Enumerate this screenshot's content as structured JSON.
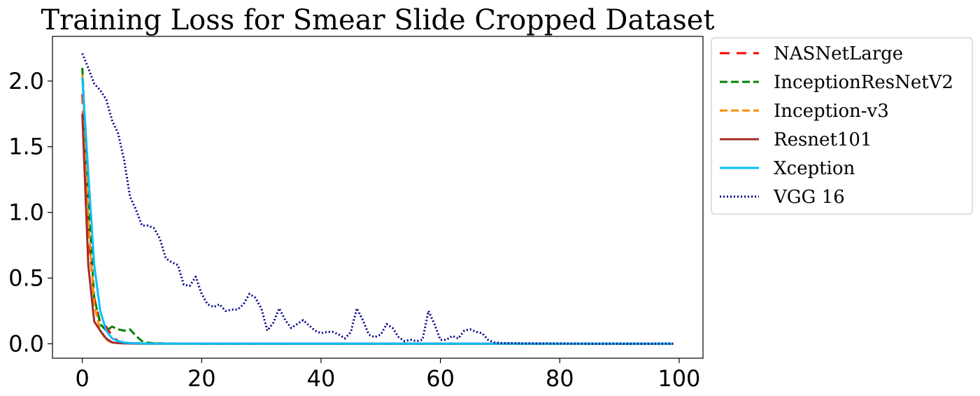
{
  "chart_data": {
    "type": "line",
    "title": "Training Loss for Smear Slide Cropped Dataset",
    "xlabel": "",
    "ylabel": "",
    "xlim": [
      -5,
      104
    ],
    "ylim": [
      -0.11,
      2.34
    ],
    "x_ticks": [
      0,
      20,
      40,
      60,
      80,
      100
    ],
    "y_ticks": [
      0.0,
      0.5,
      1.0,
      1.5,
      2.0
    ],
    "x_tick_labels": [
      "0",
      "20",
      "40",
      "60",
      "80",
      "100"
    ],
    "y_tick_labels": [
      "0.0",
      "0.5",
      "1.0",
      "1.5",
      "2.0"
    ],
    "grid": false,
    "legend_position": "outside-right",
    "series": [
      {
        "name": "NASNetLarge",
        "color": "#ff0000",
        "style": "dashed-wide",
        "x": [
          0,
          1,
          2,
          3,
          4,
          5,
          6,
          7,
          8,
          10,
          15,
          20,
          99
        ],
        "y": [
          1.9,
          0.85,
          0.35,
          0.16,
          0.13,
          0.06,
          0.02,
          0.01,
          0.005,
          0.003,
          0.002,
          0.001,
          0.001
        ]
      },
      {
        "name": "InceptionResNetV2",
        "color": "#008000",
        "style": "dashed",
        "x": [
          0,
          1,
          2,
          3,
          4,
          5,
          6,
          7,
          8,
          9,
          10,
          11,
          12,
          15,
          20,
          99
        ],
        "y": [
          2.1,
          1.1,
          0.35,
          0.15,
          0.1,
          0.13,
          0.11,
          0.1,
          0.11,
          0.06,
          0.02,
          0.008,
          0.004,
          0.002,
          0.001,
          0.001
        ]
      },
      {
        "name": "Inception-v3",
        "color": "#ff8c00",
        "style": "dashed",
        "x": [
          0,
          1,
          2,
          3,
          4,
          5,
          6,
          7,
          8,
          10,
          15,
          20,
          99
        ],
        "y": [
          2.05,
          0.95,
          0.3,
          0.1,
          0.03,
          0.01,
          0.005,
          0.003,
          0.002,
          0.001,
          0.001,
          0.001,
          0.001
        ]
      },
      {
        "name": "Resnet101",
        "color": "#a52a2a",
        "style": "solid",
        "x": [
          0,
          1,
          2,
          3,
          4,
          5,
          6,
          7,
          8,
          10,
          15,
          20,
          99
        ],
        "y": [
          1.75,
          0.6,
          0.17,
          0.1,
          0.04,
          0.01,
          0.005,
          0.003,
          0.002,
          0.001,
          0.001,
          0.001,
          0.001
        ]
      },
      {
        "name": "Xception",
        "color": "#00bfff",
        "style": "solid",
        "x": [
          0,
          1,
          2,
          3,
          4,
          5,
          6,
          7,
          8,
          10,
          15,
          20,
          99
        ],
        "y": [
          2.03,
          1.3,
          0.6,
          0.25,
          0.1,
          0.04,
          0.02,
          0.01,
          0.005,
          0.002,
          0.001,
          0.001,
          0.001
        ]
      },
      {
        "name": "VGG 16",
        "color": "#00008b",
        "style": "dotted",
        "x": [
          0,
          1,
          2,
          3,
          4,
          5,
          6,
          7,
          8,
          9,
          10,
          11,
          12,
          13,
          14,
          15,
          16,
          17,
          18,
          19,
          20,
          21,
          22,
          23,
          24,
          25,
          26,
          27,
          28,
          29,
          30,
          31,
          32,
          33,
          34,
          35,
          36,
          37,
          38,
          39,
          40,
          41,
          42,
          43,
          44,
          45,
          46,
          47,
          48,
          49,
          50,
          51,
          52,
          53,
          54,
          55,
          56,
          57,
          58,
          59,
          60,
          61,
          62,
          63,
          64,
          65,
          66,
          67,
          68,
          69,
          70,
          75,
          80,
          85,
          90,
          95,
          99
        ],
        "y": [
          2.21,
          2.1,
          1.98,
          1.93,
          1.86,
          1.7,
          1.6,
          1.4,
          1.12,
          1.02,
          0.9,
          0.9,
          0.88,
          0.8,
          0.65,
          0.62,
          0.6,
          0.45,
          0.44,
          0.51,
          0.38,
          0.3,
          0.28,
          0.3,
          0.25,
          0.26,
          0.26,
          0.3,
          0.38,
          0.35,
          0.27,
          0.1,
          0.16,
          0.27,
          0.18,
          0.12,
          0.15,
          0.18,
          0.14,
          0.1,
          0.08,
          0.09,
          0.09,
          0.07,
          0.04,
          0.09,
          0.27,
          0.18,
          0.07,
          0.05,
          0.07,
          0.15,
          0.12,
          0.05,
          0.02,
          0.03,
          0.02,
          0.03,
          0.25,
          0.15,
          0.03,
          0.03,
          0.06,
          0.04,
          0.1,
          0.11,
          0.09,
          0.08,
          0.03,
          0.01,
          0.005,
          0.003,
          0.002,
          0.001,
          0.001,
          0.001,
          0.001
        ]
      }
    ]
  }
}
